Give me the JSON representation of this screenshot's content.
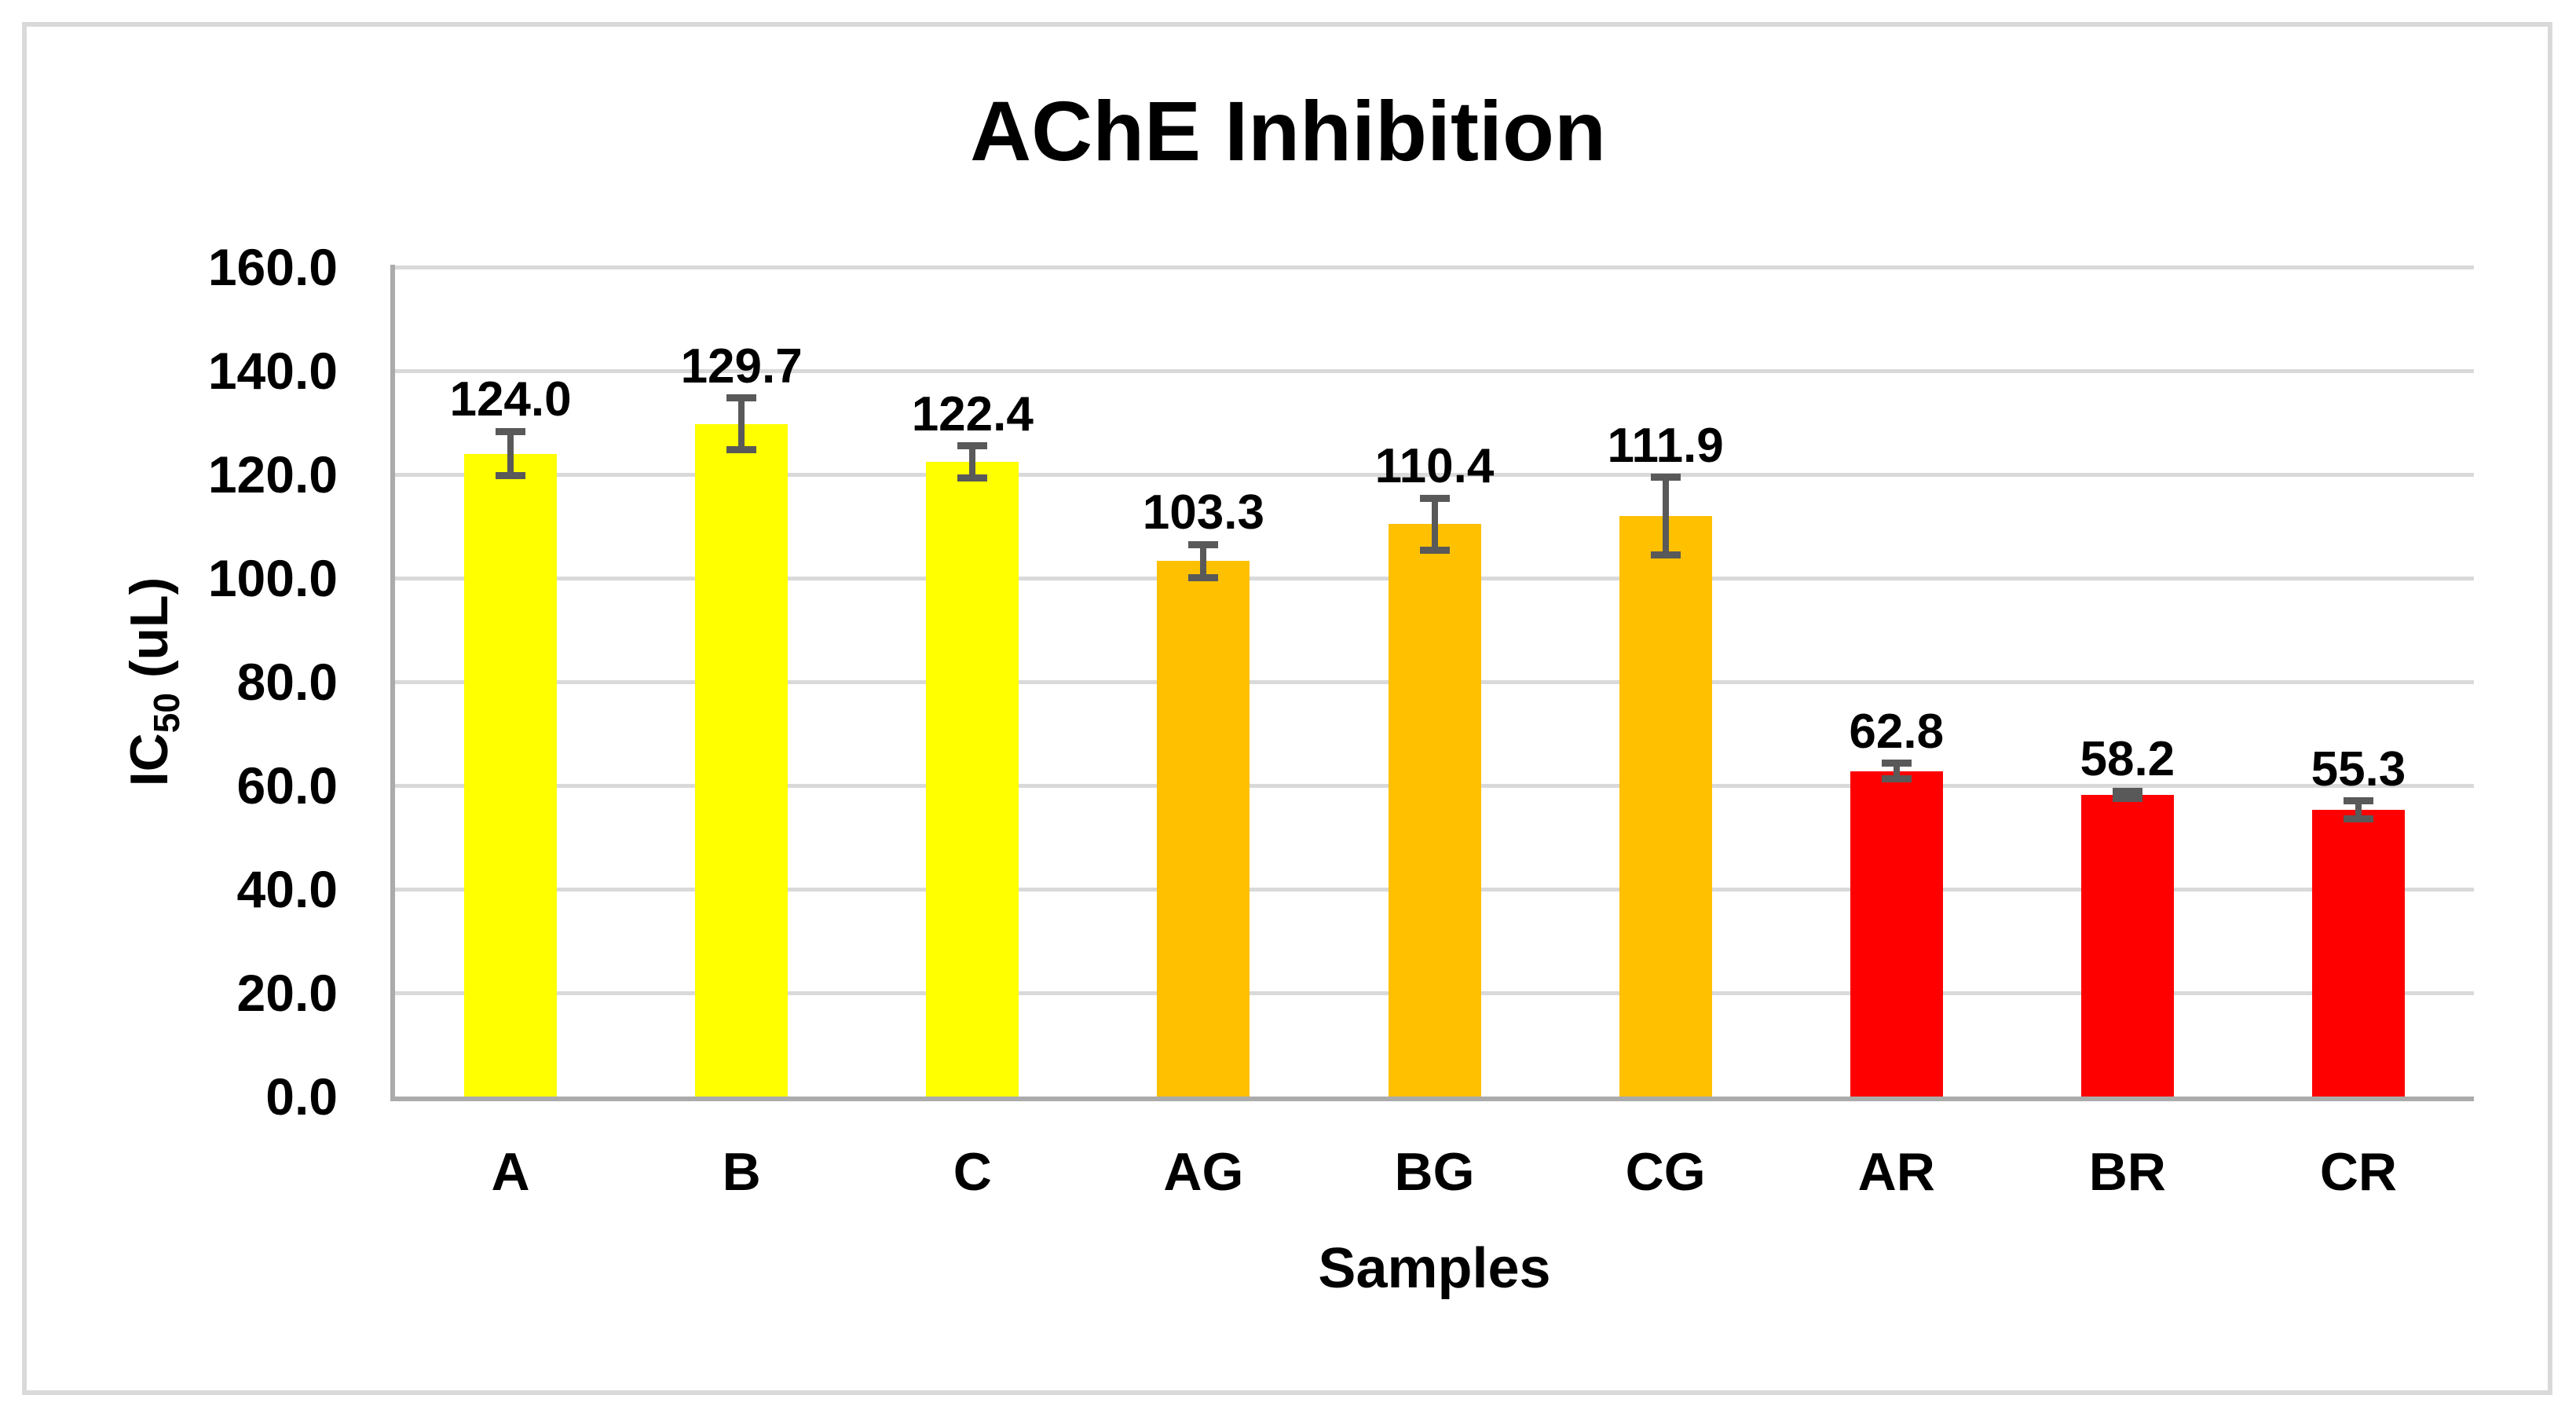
{
  "title": "AChE Inhibition",
  "chart_data": {
    "type": "bar",
    "title": "AChE Inhibition",
    "xlabel": "Samples",
    "ylabel": "IC50 (uL)",
    "ylabel_parts": {
      "prefix": "IC",
      "sub": "50",
      "suffix": " (uL)"
    },
    "categories": [
      "A",
      "B",
      "C",
      "AG",
      "BG",
      "CG",
      "AR",
      "BR",
      "CR"
    ],
    "values": [
      124.0,
      129.7,
      122.4,
      103.3,
      110.4,
      111.9,
      62.8,
      58.2,
      55.3
    ],
    "value_labels": [
      "124.0",
      "129.7",
      "122.4",
      "103.3",
      "110.4",
      "111.9",
      "62.8",
      "58.2",
      "55.3"
    ],
    "error_bars": [
      4.3,
      5.0,
      3.1,
      3.2,
      5.0,
      7.5,
      1.5,
      0.7,
      1.7
    ],
    "bar_colors": [
      "#FFFF00",
      "#FFFF00",
      "#FFFF00",
      "#FFC000",
      "#FFC000",
      "#FFC000",
      "#FF0000",
      "#FF0000",
      "#FF0000"
    ],
    "group_colors": {
      "yellow": "#FFFF00",
      "gold": "#FFC000",
      "red": "#FF0000"
    },
    "ylim": [
      0,
      160
    ],
    "ytick_step": 20,
    "ytick_labels": [
      "0.0",
      "20.0",
      "40.0",
      "60.0",
      "80.0",
      "100.0",
      "120.0",
      "140.0",
      "160.0"
    ],
    "grid": true,
    "legend": false
  },
  "colors": {
    "background": "#FFFFFF",
    "frame_border": "#D9D9D9",
    "gridline": "#D9D9D9",
    "axis_line": "#ABABAB",
    "error_bar": "#595959",
    "text": "#000000"
  }
}
